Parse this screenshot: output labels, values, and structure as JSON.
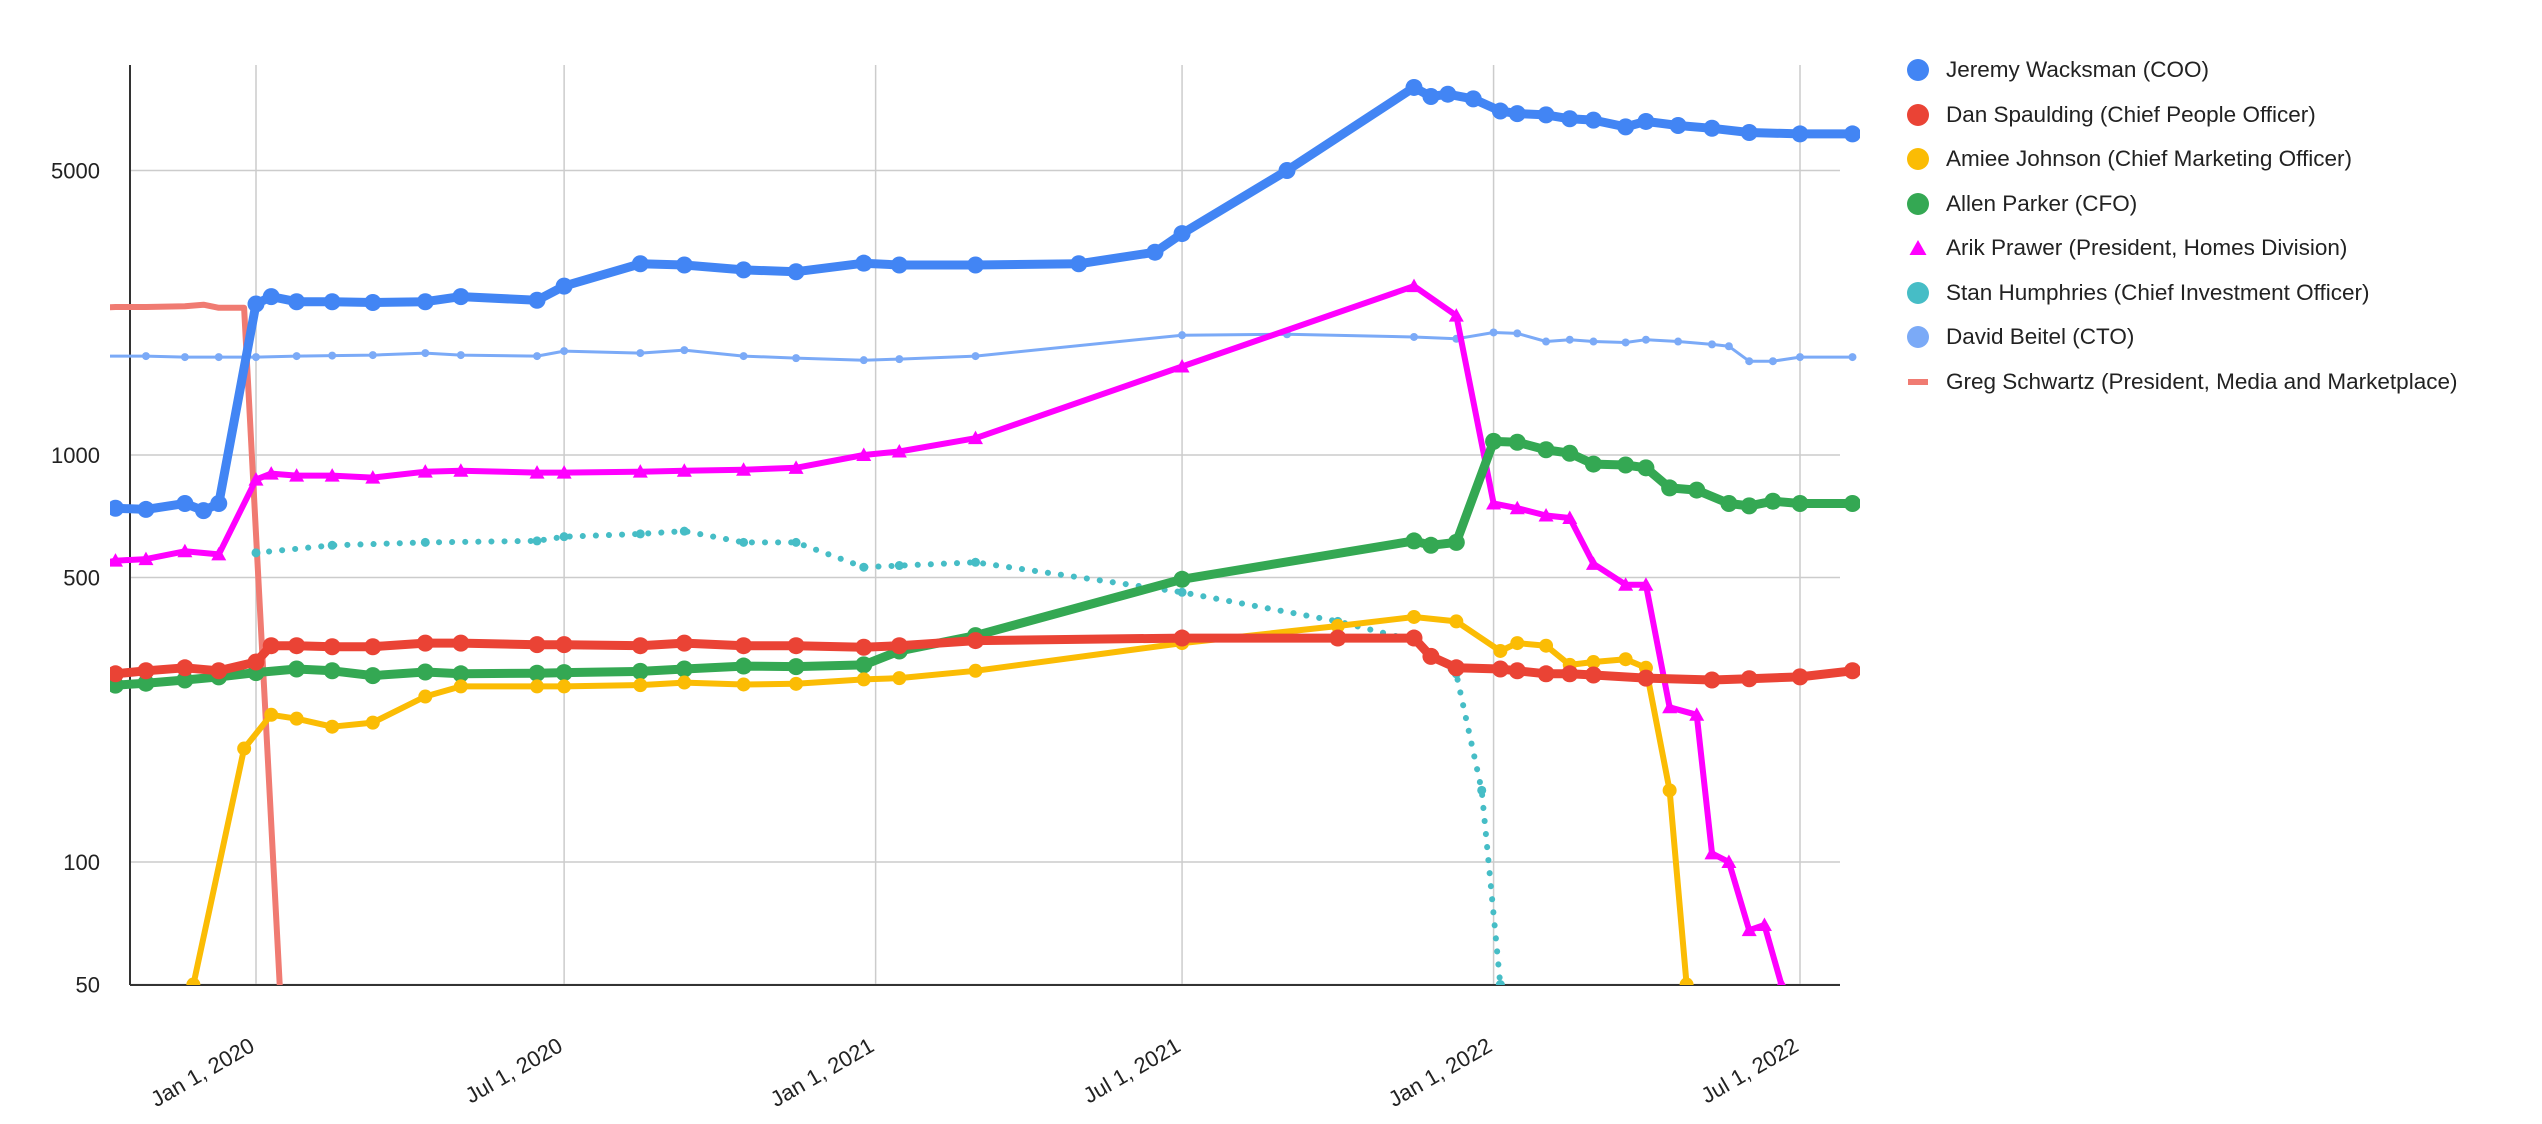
{
  "chart_data": {
    "type": "line",
    "title": "",
    "xlabel": "",
    "ylabel": "",
    "y_scale": "log",
    "ylim": [
      50,
      8000
    ],
    "xlim": [
      "2019-10-01",
      "2022-08-10"
    ],
    "grid": true,
    "legend_position": "right",
    "y_ticks": [
      {
        "value": 50,
        "label": "50"
      },
      {
        "value": 100,
        "label": "100"
      },
      {
        "value": 500,
        "label": "500"
      },
      {
        "value": 1000,
        "label": "1000"
      },
      {
        "value": 5000,
        "label": "5000"
      }
    ],
    "x_ticks": [
      {
        "date": "2020-01-01",
        "label": "Jan 1, 2020"
      },
      {
        "date": "2020-07-01",
        "label": "Jul 1, 2020"
      },
      {
        "date": "2021-01-01",
        "label": "Jan 1, 2021"
      },
      {
        "date": "2021-07-01",
        "label": "Jul 1, 2021"
      },
      {
        "date": "2022-01-01",
        "label": "Jan 1, 2022"
      },
      {
        "date": "2022-07-01",
        "label": "Jul 1, 2022"
      }
    ],
    "series": [
      {
        "name": "Jeremy Wacksman (COO)",
        "color": "#4285f4",
        "marker": "circle",
        "style": "thick",
        "points": [
          [
            "2019-10-01",
            740
          ],
          [
            "2019-10-10",
            740
          ],
          [
            "2019-10-28",
            735
          ],
          [
            "2019-11-20",
            760
          ],
          [
            "2019-12-01",
            730
          ],
          [
            "2019-12-10",
            760
          ],
          [
            "2020-01-01",
            2350
          ],
          [
            "2020-01-10",
            2450
          ],
          [
            "2020-01-25",
            2380
          ],
          [
            "2020-02-15",
            2380
          ],
          [
            "2020-03-10",
            2370
          ],
          [
            "2020-04-10",
            2380
          ],
          [
            "2020-05-01",
            2450
          ],
          [
            "2020-06-15",
            2400
          ],
          [
            "2020-07-01",
            2600
          ],
          [
            "2020-08-15",
            2950
          ],
          [
            "2020-09-10",
            2930
          ],
          [
            "2020-10-15",
            2850
          ],
          [
            "2020-11-15",
            2820
          ],
          [
            "2020-12-25",
            2960
          ],
          [
            "2021-01-15",
            2930
          ],
          [
            "2021-03-01",
            2930
          ],
          [
            "2021-05-01",
            2950
          ],
          [
            "2021-06-15",
            3150
          ],
          [
            "2021-07-01",
            3500
          ],
          [
            "2021-09-01",
            5000
          ],
          [
            "2021-11-15",
            8000
          ],
          [
            "2021-11-25",
            7600
          ],
          [
            "2021-12-05",
            7700
          ],
          [
            "2021-12-20",
            7500
          ],
          [
            "2022-01-05",
            7000
          ],
          [
            "2022-01-15",
            6900
          ],
          [
            "2022-02-01",
            6850
          ],
          [
            "2022-02-15",
            6700
          ],
          [
            "2022-03-01",
            6650
          ],
          [
            "2022-03-20",
            6400
          ],
          [
            "2022-04-01",
            6600
          ],
          [
            "2022-04-20",
            6450
          ],
          [
            "2022-05-10",
            6350
          ],
          [
            "2022-06-01",
            6200
          ],
          [
            "2022-07-01",
            6150
          ],
          [
            "2022-08-01",
            6150
          ]
        ]
      },
      {
        "name": "Dan Spaulding (Chief People Officer)",
        "color": "#ea4335",
        "marker": "circle",
        "style": "thick",
        "points": [
          [
            "2019-10-01",
            285
          ],
          [
            "2019-10-10",
            290
          ],
          [
            "2019-10-28",
            295
          ],
          [
            "2019-11-20",
            300
          ],
          [
            "2019-12-10",
            295
          ],
          [
            "2020-01-01",
            310
          ],
          [
            "2020-01-10",
            340
          ],
          [
            "2020-01-25",
            340
          ],
          [
            "2020-02-15",
            338
          ],
          [
            "2020-03-10",
            338
          ],
          [
            "2020-04-10",
            345
          ],
          [
            "2020-05-01",
            345
          ],
          [
            "2020-06-15",
            342
          ],
          [
            "2020-07-01",
            342
          ],
          [
            "2020-08-15",
            340
          ],
          [
            "2020-09-10",
            345
          ],
          [
            "2020-10-15",
            340
          ],
          [
            "2020-11-15",
            340
          ],
          [
            "2020-12-25",
            337
          ],
          [
            "2021-01-15",
            340
          ],
          [
            "2021-03-01",
            350
          ],
          [
            "2021-07-01",
            355
          ],
          [
            "2021-10-01",
            355
          ],
          [
            "2021-11-15",
            355
          ],
          [
            "2021-11-25",
            320
          ],
          [
            "2021-12-10",
            300
          ],
          [
            "2022-01-05",
            298
          ],
          [
            "2022-01-15",
            295
          ],
          [
            "2022-02-01",
            290
          ],
          [
            "2022-02-15",
            290
          ],
          [
            "2022-03-01",
            288
          ],
          [
            "2022-04-01",
            283
          ],
          [
            "2022-05-10",
            280
          ],
          [
            "2022-06-01",
            282
          ],
          [
            "2022-07-01",
            285
          ],
          [
            "2022-08-01",
            295
          ]
        ]
      },
      {
        "name": "Amiee Johnson (Chief Marketing Officer)",
        "color": "#fbbc04",
        "marker": "circle",
        "style": "normal",
        "points": [
          [
            "2019-11-25",
            50
          ],
          [
            "2019-12-25",
            190
          ],
          [
            "2020-01-10",
            230
          ],
          [
            "2020-01-25",
            225
          ],
          [
            "2020-02-15",
            215
          ],
          [
            "2020-03-10",
            220
          ],
          [
            "2020-04-10",
            255
          ],
          [
            "2020-05-01",
            270
          ],
          [
            "2020-06-15",
            270
          ],
          [
            "2020-07-01",
            270
          ],
          [
            "2020-08-15",
            272
          ],
          [
            "2020-09-10",
            276
          ],
          [
            "2020-10-15",
            273
          ],
          [
            "2020-11-15",
            274
          ],
          [
            "2020-12-25",
            281
          ],
          [
            "2021-01-15",
            283
          ],
          [
            "2021-03-01",
            295
          ],
          [
            "2021-07-01",
            345
          ],
          [
            "2021-10-01",
            380
          ],
          [
            "2021-11-15",
            400
          ],
          [
            "2021-12-10",
            390
          ],
          [
            "2022-01-05",
            330
          ],
          [
            "2022-01-15",
            345
          ],
          [
            "2022-02-01",
            340
          ],
          [
            "2022-02-15",
            305
          ],
          [
            "2022-03-01",
            310
          ],
          [
            "2022-03-20",
            315
          ],
          [
            "2022-04-01",
            300
          ],
          [
            "2022-04-15",
            150
          ],
          [
            "2022-04-25",
            50
          ]
        ]
      },
      {
        "name": "Allen Parker (CFO)",
        "color": "#34a853",
        "marker": "circle",
        "style": "thick",
        "points": [
          [
            "2019-10-01",
            270
          ],
          [
            "2019-10-10",
            272
          ],
          [
            "2019-10-28",
            275
          ],
          [
            "2019-11-20",
            280
          ],
          [
            "2019-12-10",
            285
          ],
          [
            "2020-01-01",
            292
          ],
          [
            "2020-01-25",
            298
          ],
          [
            "2020-02-15",
            295
          ],
          [
            "2020-03-10",
            287
          ],
          [
            "2020-04-10",
            293
          ],
          [
            "2020-05-01",
            290
          ],
          [
            "2020-06-15",
            291
          ],
          [
            "2020-07-01",
            292
          ],
          [
            "2020-08-15",
            294
          ],
          [
            "2020-09-10",
            298
          ],
          [
            "2020-10-15",
            303
          ],
          [
            "2020-11-15",
            302
          ],
          [
            "2020-12-25",
            305
          ],
          [
            "2021-01-15",
            330
          ],
          [
            "2021-03-01",
            360
          ],
          [
            "2021-07-01",
            495
          ],
          [
            "2021-11-15",
            615
          ],
          [
            "2021-11-25",
            600
          ],
          [
            "2021-12-10",
            610
          ],
          [
            "2022-01-01",
            1080
          ],
          [
            "2022-01-15",
            1075
          ],
          [
            "2022-02-01",
            1030
          ],
          [
            "2022-02-15",
            1010
          ],
          [
            "2022-03-01",
            950
          ],
          [
            "2022-03-20",
            945
          ],
          [
            "2022-04-01",
            930
          ],
          [
            "2022-04-15",
            830
          ],
          [
            "2022-05-01",
            820
          ],
          [
            "2022-05-20",
            760
          ],
          [
            "2022-06-01",
            750
          ],
          [
            "2022-06-15",
            770
          ],
          [
            "2022-07-01",
            760
          ],
          [
            "2022-08-01",
            760
          ]
        ]
      },
      {
        "name": "Arik Prawer (President, Homes Division)",
        "color": "#ff00ff",
        "marker": "triangle",
        "style": "normal",
        "points": [
          [
            "2019-10-01",
            540
          ],
          [
            "2019-10-10",
            550
          ],
          [
            "2019-10-28",
            555
          ],
          [
            "2019-11-20",
            580
          ],
          [
            "2019-12-10",
            570
          ],
          [
            "2020-01-01",
            870
          ],
          [
            "2020-01-10",
            900
          ],
          [
            "2020-01-25",
            890
          ],
          [
            "2020-02-15",
            890
          ],
          [
            "2020-03-10",
            880
          ],
          [
            "2020-04-10",
            910
          ],
          [
            "2020-05-01",
            915
          ],
          [
            "2020-06-15",
            905
          ],
          [
            "2020-07-01",
            905
          ],
          [
            "2020-08-15",
            910
          ],
          [
            "2020-09-10",
            915
          ],
          [
            "2020-10-15",
            920
          ],
          [
            "2020-11-15",
            930
          ],
          [
            "2020-12-25",
            1000
          ],
          [
            "2021-01-15",
            1020
          ],
          [
            "2021-03-01",
            1100
          ],
          [
            "2021-07-01",
            1650
          ],
          [
            "2021-11-15",
            2600
          ],
          [
            "2021-12-10",
            2200
          ],
          [
            "2022-01-01",
            760
          ],
          [
            "2022-01-15",
            740
          ],
          [
            "2022-02-01",
            710
          ],
          [
            "2022-02-15",
            700
          ],
          [
            "2022-03-01",
            540
          ],
          [
            "2022-03-20",
            480
          ],
          [
            "2022-04-01",
            480
          ],
          [
            "2022-04-15",
            240
          ],
          [
            "2022-05-01",
            230
          ],
          [
            "2022-05-10",
            105
          ],
          [
            "2022-05-20",
            100
          ],
          [
            "2022-06-01",
            68
          ],
          [
            "2022-06-10",
            70
          ],
          [
            "2022-06-20",
            50
          ]
        ]
      },
      {
        "name": "Stan Humphries (Chief Investment Officer)",
        "color": "#46bdc6",
        "marker": "circle",
        "style": "dotted",
        "points": [
          [
            "2020-01-01",
            575
          ],
          [
            "2020-02-15",
            600
          ],
          [
            "2020-04-10",
            610
          ],
          [
            "2020-06-15",
            615
          ],
          [
            "2020-07-01",
            630
          ],
          [
            "2020-08-15",
            640
          ],
          [
            "2020-09-10",
            650
          ],
          [
            "2020-10-15",
            610
          ],
          [
            "2020-11-15",
            610
          ],
          [
            "2020-12-25",
            530
          ],
          [
            "2021-01-15",
            535
          ],
          [
            "2021-03-01",
            545
          ],
          [
            "2021-07-01",
            460
          ],
          [
            "2021-10-01",
            390
          ],
          [
            "2021-11-15",
            350
          ],
          [
            "2021-12-10",
            290
          ],
          [
            "2021-12-25",
            150
          ],
          [
            "2022-01-05",
            50
          ]
        ]
      },
      {
        "name": "David Beitel (CTO)",
        "color": "#7baaf7",
        "marker": "small-circle",
        "style": "thin",
        "points": [
          [
            "2019-10-01",
            1750
          ],
          [
            "2019-10-28",
            1750
          ],
          [
            "2019-11-20",
            1740
          ],
          [
            "2019-12-10",
            1740
          ],
          [
            "2020-01-01",
            1740
          ],
          [
            "2020-01-25",
            1750
          ],
          [
            "2020-02-15",
            1755
          ],
          [
            "2020-03-10",
            1760
          ],
          [
            "2020-04-10",
            1780
          ],
          [
            "2020-05-01",
            1760
          ],
          [
            "2020-06-15",
            1750
          ],
          [
            "2020-07-01",
            1800
          ],
          [
            "2020-08-15",
            1780
          ],
          [
            "2020-09-10",
            1810
          ],
          [
            "2020-10-15",
            1750
          ],
          [
            "2020-11-15",
            1730
          ],
          [
            "2020-12-25",
            1710
          ],
          [
            "2021-01-15",
            1720
          ],
          [
            "2021-03-01",
            1750
          ],
          [
            "2021-07-01",
            1970
          ],
          [
            "2021-09-01",
            1980
          ],
          [
            "2021-11-15",
            1950
          ],
          [
            "2021-12-10",
            1930
          ],
          [
            "2022-01-01",
            2000
          ],
          [
            "2022-01-15",
            1990
          ],
          [
            "2022-02-01",
            1900
          ],
          [
            "2022-02-15",
            1920
          ],
          [
            "2022-03-01",
            1900
          ],
          [
            "2022-03-20",
            1890
          ],
          [
            "2022-04-01",
            1920
          ],
          [
            "2022-04-20",
            1900
          ],
          [
            "2022-05-10",
            1870
          ],
          [
            "2022-05-20",
            1850
          ],
          [
            "2022-06-01",
            1700
          ],
          [
            "2022-06-15",
            1700
          ],
          [
            "2022-07-01",
            1740
          ],
          [
            "2022-08-01",
            1740
          ]
        ]
      },
      {
        "name": "Greg Schwartz (President, Media and Marketplace)",
        "color": "#f07b72",
        "marker": "line",
        "style": "normal",
        "points": [
          [
            "2019-10-01",
            2300
          ],
          [
            "2019-10-10",
            2310
          ],
          [
            "2019-10-28",
            2310
          ],
          [
            "2019-11-20",
            2320
          ],
          [
            "2019-12-01",
            2340
          ],
          [
            "2019-12-10",
            2300
          ],
          [
            "2019-12-25",
            2300
          ],
          [
            "2020-01-15",
            50
          ]
        ]
      }
    ]
  }
}
